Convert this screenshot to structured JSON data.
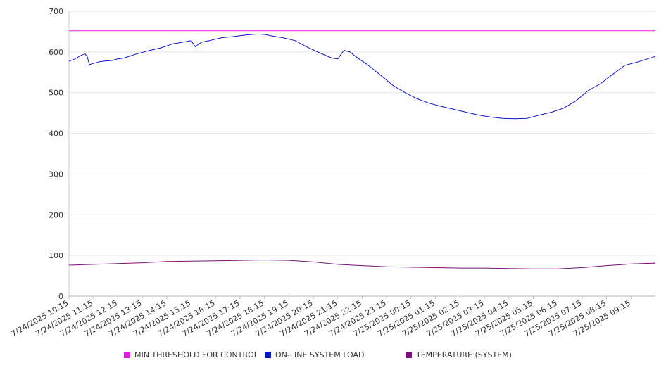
{
  "chart_data": {
    "type": "line",
    "title": "",
    "xlabel": "",
    "ylabel": "",
    "ylim": [
      0,
      700
    ],
    "yticks": [
      0,
      100,
      200,
      300,
      400,
      500,
      600,
      700
    ],
    "grid": true,
    "legend_position": "bottom",
    "x_tick_labels": [
      "7/24/2025 10:15",
      "7/24/2025 11:15",
      "7/24/2025 12:15",
      "7/24/2025 13:15",
      "7/24/2025 14:15",
      "7/24/2025 15:15",
      "7/24/2025 16:15",
      "7/24/2025 17:15",
      "7/24/2025 18:15",
      "7/24/2025 19:15",
      "7/24/2025 20:15",
      "7/24/2025 21:15",
      "7/24/2025 22:15",
      "7/24/2025 23:15",
      "7/25/2025 00:15",
      "7/25/2025 01:15",
      "7/25/2025 02:15",
      "7/25/2025 03:15",
      "7/25/2025 04:15",
      "7/25/2025 05:15",
      "7/25/2025 06:15",
      "7/25/2025 07:15",
      "7/25/2025 08:15",
      "7/25/2025 09:15"
    ],
    "series": [
      {
        "name": "MIN THRESHOLD FOR CONTROL",
        "color": "#e01ee0",
        "x": [
          "7/24/2025 10:15",
          "7/25/2025 10:15"
        ],
        "values": [
          652,
          652
        ]
      },
      {
        "name": "ON-LINE SYSTEM LOAD",
        "color": "#0a14c8",
        "x": [
          "7/24/2025 10:15",
          "7/24/2025 10:30",
          "7/24/2025 10:45",
          "7/24/2025 10:55",
          "7/24/2025 11:00",
          "7/24/2025 11:05",
          "7/24/2025 11:30",
          "7/24/2025 11:45",
          "7/24/2025 12:00",
          "7/24/2025 12:15",
          "7/24/2025 12:30",
          "7/24/2025 13:00",
          "7/24/2025 13:30",
          "7/24/2025 14:00",
          "7/24/2025 14:30",
          "7/24/2025 15:00",
          "7/24/2025 15:15",
          "7/24/2025 15:25",
          "7/24/2025 15:40",
          "7/24/2025 16:00",
          "7/24/2025 16:30",
          "7/24/2025 17:00",
          "7/24/2025 17:30",
          "7/24/2025 18:00",
          "7/24/2025 18:15",
          "7/24/2025 18:30",
          "7/24/2025 19:00",
          "7/24/2025 19:30",
          "7/24/2025 20:00",
          "7/24/2025 20:30",
          "7/24/2025 21:00",
          "7/24/2025 21:15",
          "7/24/2025 21:30",
          "7/24/2025 21:45",
          "7/24/2025 22:00",
          "7/24/2025 22:30",
          "7/24/2025 23:00",
          "7/24/2025 23:30",
          "7/25/2025 00:00",
          "7/25/2025 00:30",
          "7/25/2025 01:00",
          "7/25/2025 01:30",
          "7/25/2025 02:00",
          "7/25/2025 02:30",
          "7/25/2025 03:00",
          "7/25/2025 03:30",
          "7/25/2025 04:00",
          "7/25/2025 04:30",
          "7/25/2025 05:00",
          "7/25/2025 05:30",
          "7/25/2025 06:00",
          "7/25/2025 06:30",
          "7/25/2025 07:00",
          "7/25/2025 07:30",
          "7/25/2025 08:00",
          "7/25/2025 08:30",
          "7/25/2025 09:00",
          "7/25/2025 09:30",
          "7/25/2025 10:15"
        ],
        "values": [
          577,
          583,
          592,
          595,
          588,
          569,
          576,
          578,
          579,
          583,
          585,
          595,
          603,
          610,
          620,
          625,
          628,
          613,
          624,
          628,
          635,
          638,
          642,
          644,
          643,
          640,
          635,
          628,
          612,
          598,
          585,
          583,
          604,
          600,
          588,
          567,
          543,
          518,
          500,
          485,
          474,
          466,
          459,
          452,
          445,
          440,
          437,
          436,
          437,
          445,
          452,
          462,
          480,
          505,
          522,
          545,
          567,
          575,
          589
        ]
      },
      {
        "name": "TEMPERATURE (SYSTEM)",
        "color": "#7a0f7a",
        "x": [
          "7/24/2025 10:15",
          "7/24/2025 11:15",
          "7/24/2025 12:15",
          "7/24/2025 13:15",
          "7/24/2025 14:15",
          "7/24/2025 15:15",
          "7/24/2025 16:15",
          "7/24/2025 17:15",
          "7/24/2025 18:15",
          "7/24/2025 19:15",
          "7/24/2025 20:15",
          "7/24/2025 21:15",
          "7/24/2025 22:15",
          "7/24/2025 23:15",
          "7/25/2025 00:15",
          "7/25/2025 01:15",
          "7/25/2025 02:15",
          "7/25/2025 03:15",
          "7/25/2025 04:15",
          "7/25/2025 05:15",
          "7/25/2025 06:15",
          "7/25/2025 07:15",
          "7/25/2025 08:15",
          "7/25/2025 09:15",
          "7/25/2025 10:15"
        ],
        "values": [
          76,
          78,
          80,
          82,
          85,
          86,
          87,
          88,
          89,
          88,
          84,
          78,
          75,
          72,
          71,
          70,
          69,
          69,
          68,
          67,
          67,
          70,
          75,
          79,
          81
        ]
      }
    ]
  }
}
